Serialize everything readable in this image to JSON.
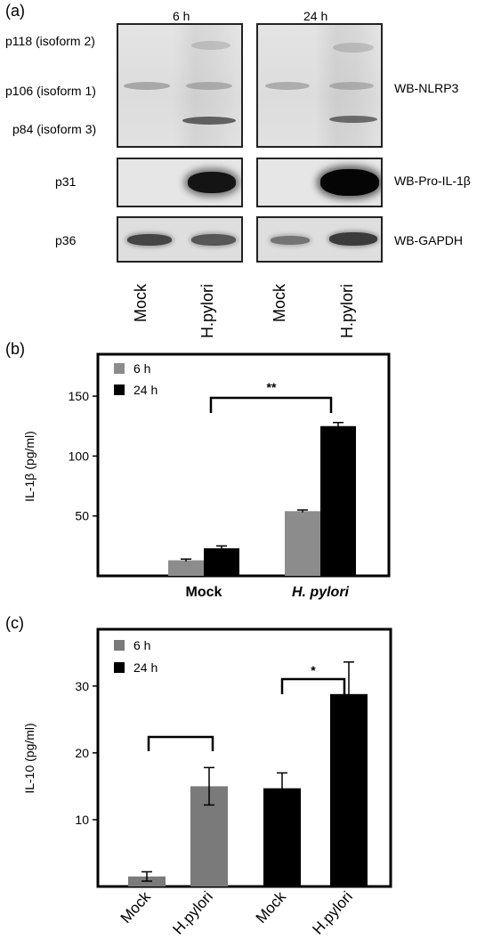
{
  "panel_a": {
    "label": "(a)",
    "time_labels": [
      "6 h",
      "24 h"
    ],
    "left_labels": [
      "p118 (isoform 2)",
      "p106 (isoform 1)",
      "p84 (isoform 3)",
      "p31",
      "p36"
    ],
    "right_labels": [
      "WB-NLRP3",
      "WB-Pro-IL-1β",
      "WB-GAPDH"
    ],
    "lane_labels": [
      "Mock",
      "H.pylori",
      "Mock",
      "H.pylori"
    ]
  },
  "chart_data": [
    {
      "panel": "(b)",
      "type": "bar",
      "ylabel": "IL-1β (pg/ml)",
      "ylim": [
        0,
        185
      ],
      "yticks": [
        50,
        100,
        150
      ],
      "categories": [
        "Mock",
        "H. pylori"
      ],
      "series": [
        {
          "name": "6 h",
          "values": [
            13,
            54
          ],
          "errors": [
            1,
            1
          ],
          "color": "#8c8c8c"
        },
        {
          "name": "24 h",
          "values": [
            23,
            125
          ],
          "errors": [
            2,
            3
          ],
          "color": "#000000"
        }
      ],
      "significance": [
        "**"
      ],
      "legend": "top-left"
    },
    {
      "panel": "(c)",
      "type": "bar",
      "ylabel": "IL-10 (pg/ml)",
      "ylim": [
        0,
        38.5
      ],
      "yticks": [
        10,
        20,
        30
      ],
      "categories": [
        "Mock",
        "H.pylori",
        "Mock",
        "H.pylori"
      ],
      "values": [
        1.5,
        15,
        14.7,
        28.8
      ],
      "errors": [
        0.7,
        2.8,
        2.3,
        4.8
      ],
      "series": [
        {
          "name": "6 h",
          "color": "#7a7a7a"
        },
        {
          "name": "24 h",
          "color": "#000000"
        }
      ],
      "bar_series": [
        "6 h",
        "6 h",
        "24 h",
        "24 h"
      ],
      "significance": [
        "",
        "*"
      ],
      "legend": "top-left"
    }
  ]
}
